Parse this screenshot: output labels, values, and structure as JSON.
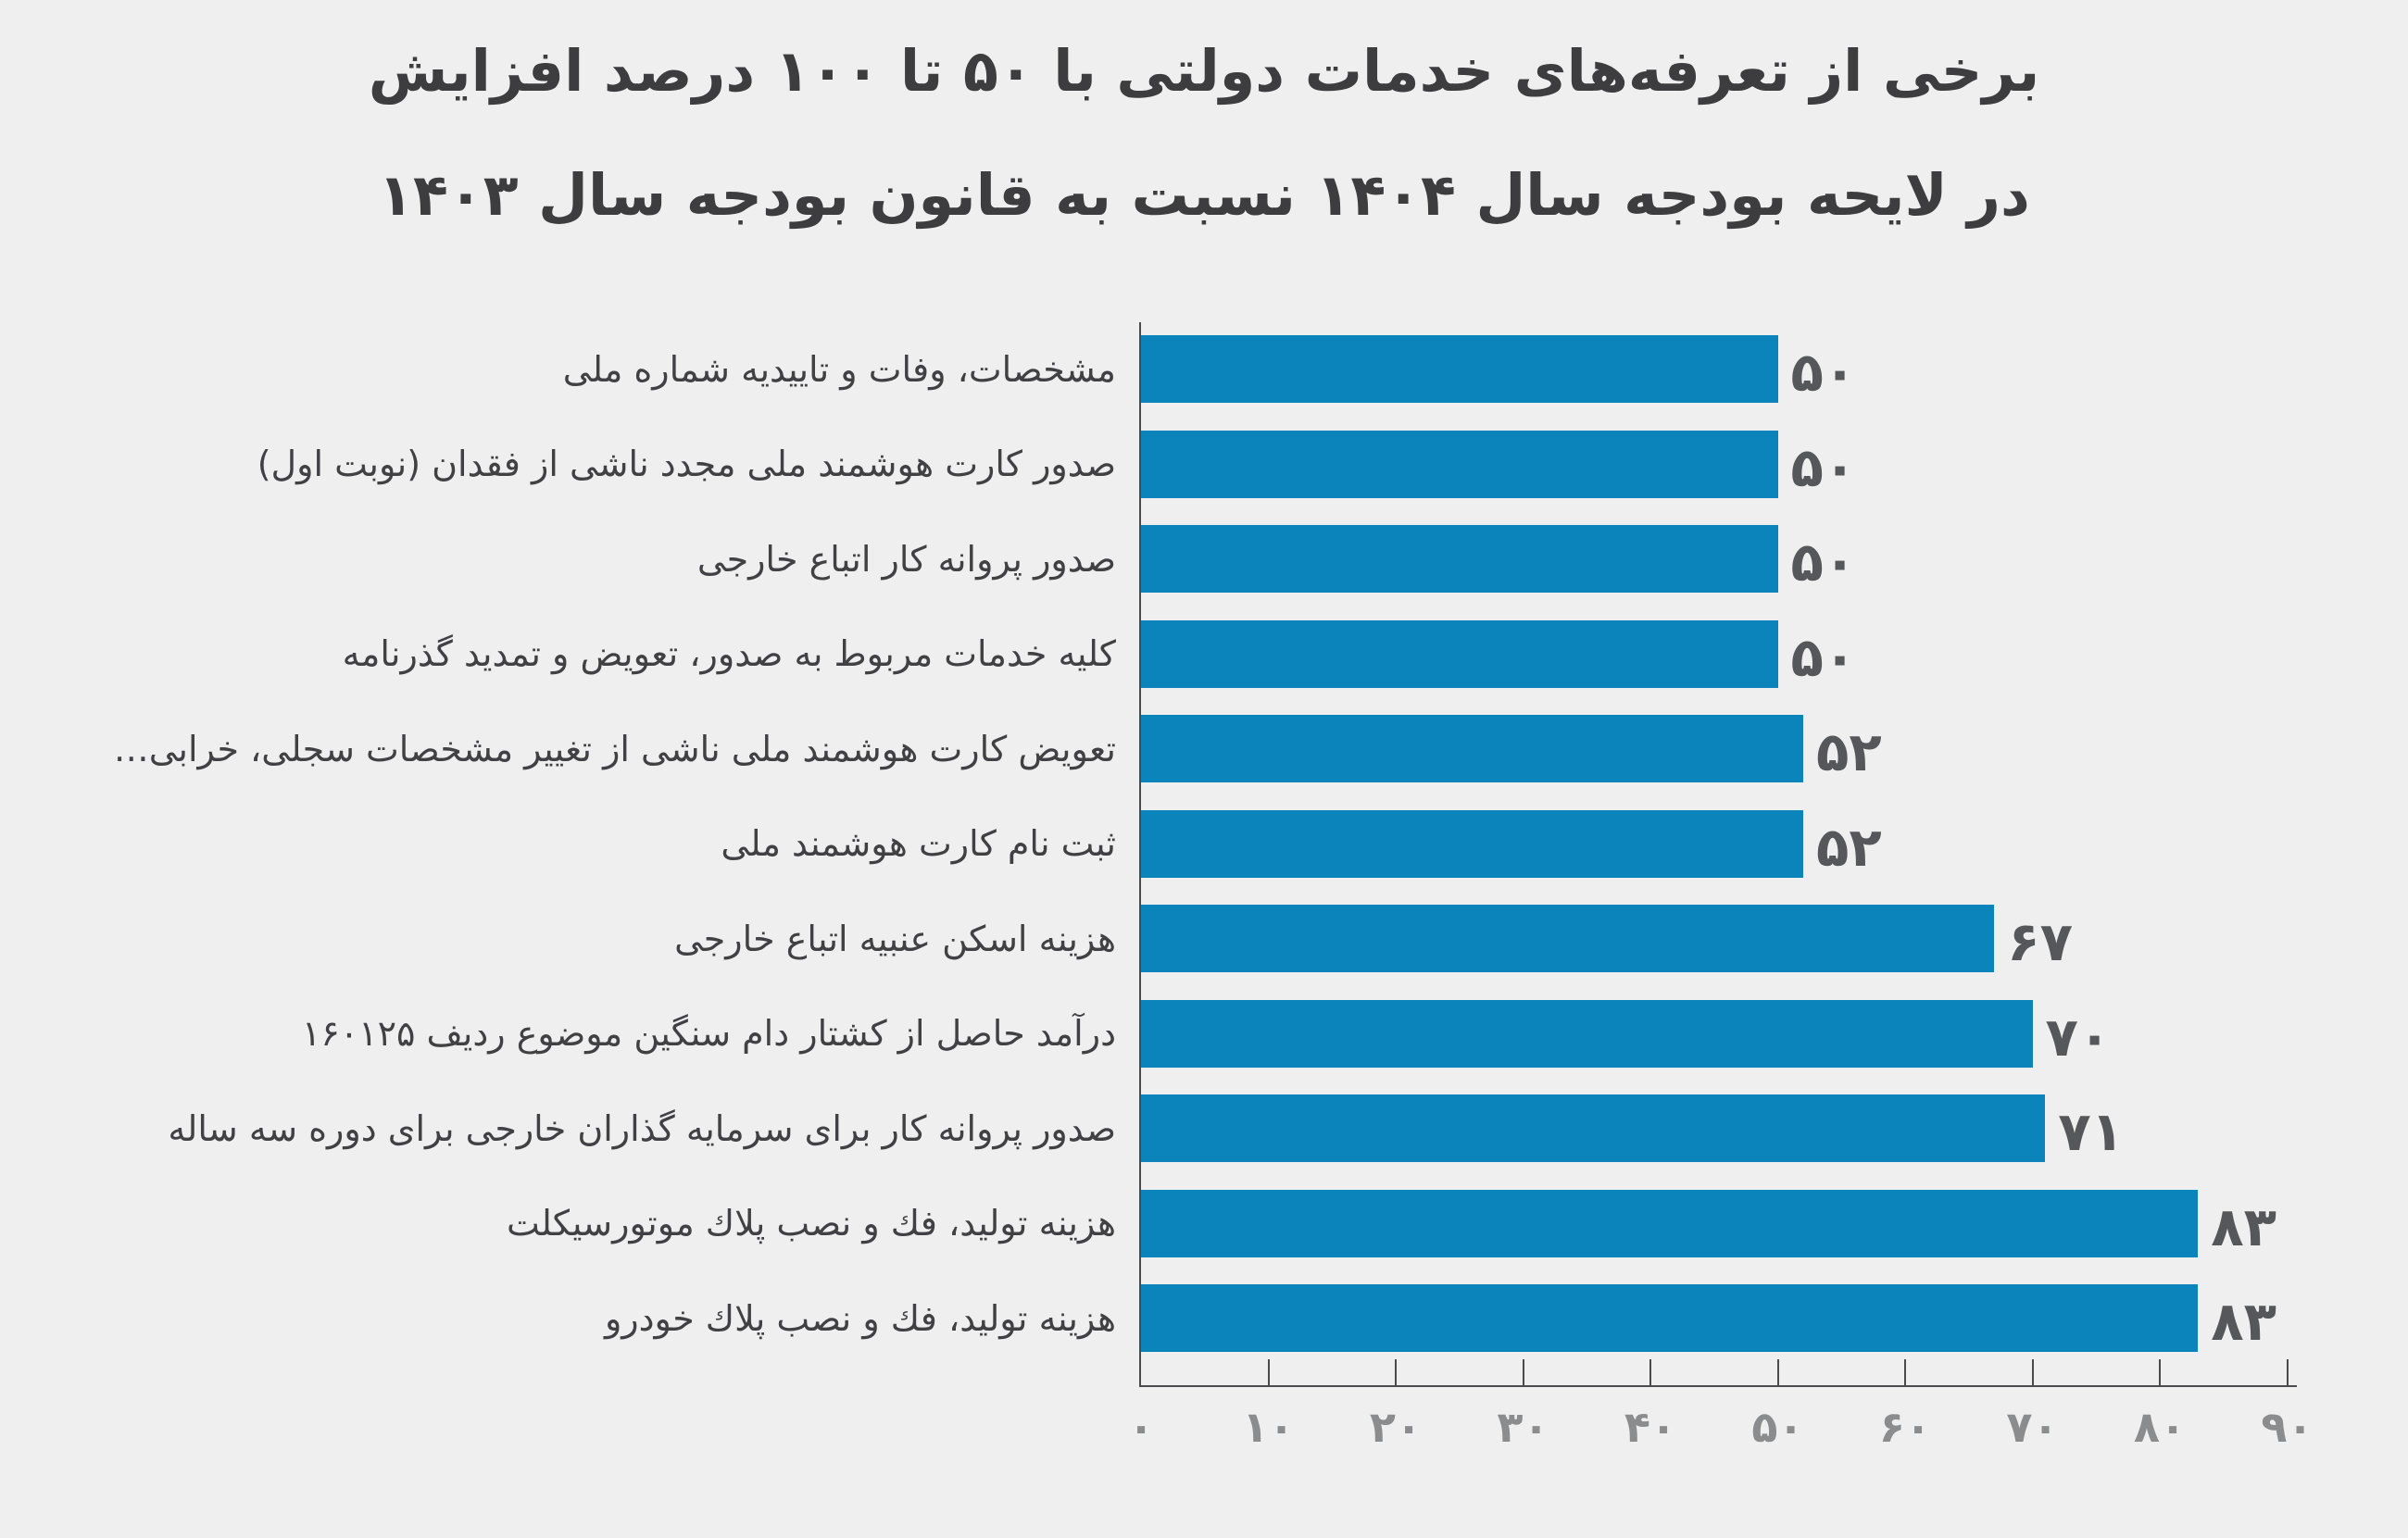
{
  "page": {
    "background": "#efefef"
  },
  "chart_data": {
    "type": "bar",
    "orientation": "horizontal",
    "title_line1": "برخی از تعرفه‌های خدمات دولتی با ۵۰ تا ۱۰۰ درصد افزایش",
    "title_line2": "در لایحه بودجه سال ۱۴۰۴ نسبت به قانون بودجه سال ۱۴۰۳",
    "categories": [
      "مشخصات، وفات و تاییدیه شماره ملی",
      "صدور کارت هوشمند ملی مجدد ناشی از فقدان (نوبت اول)",
      "صدور پروانه کار اتباع خارجی",
      "کلیه خدمات مربوط به صدور، تعویض و تمدید گذرنامه",
      "تعویض کارت هوشمند ملی ناشی از تغییر مشخصات سجلی، خرابی…",
      "ثبت نام کارت هوشمند ملی",
      "هزینه اسکن عنبیه اتباع خارجی",
      "درآمد حاصل از کشتار دام سنگین موضوع ردیف ۱۶۰۱۲۵",
      "صدور پروانه کار برای سرمایه گذاران خارجی برای دوره سه ساله",
      "هزینه تولید، فك و نصب پلاك موتورسیكلت",
      "هزینه تولید، فك و نصب پلاك خودرو"
    ],
    "values": [
      50,
      50,
      50,
      50,
      52,
      52,
      67,
      70,
      71,
      83,
      83
    ],
    "value_labels": [
      "۵۰",
      "۵۰",
      "۵۰",
      "۵۰",
      "۵۲",
      "۵۲",
      "۶۷",
      "۷۰",
      "۷۱",
      "۸۳",
      "۸۳"
    ],
    "xlim": [
      0,
      90
    ],
    "x_ticks": [
      0,
      10,
      20,
      30,
      40,
      50,
      60,
      70,
      80,
      90
    ],
    "x_tick_labels": [
      "۰",
      "۱۰",
      "۲۰",
      "۳۰",
      "۴۰",
      "۵۰",
      "۶۰",
      "۷۰",
      "۸۰",
      "۹۰"
    ],
    "grid": false,
    "legend": null,
    "bar_color": "#0a84ba"
  },
  "colors": {
    "background": "#efefef",
    "bar": "#0a84ba",
    "title": "#3d3d3f",
    "category_label": "#414144",
    "value_label": "#56575a",
    "tick_label": "#8a8c8e",
    "axis": "#4b4b4d"
  }
}
